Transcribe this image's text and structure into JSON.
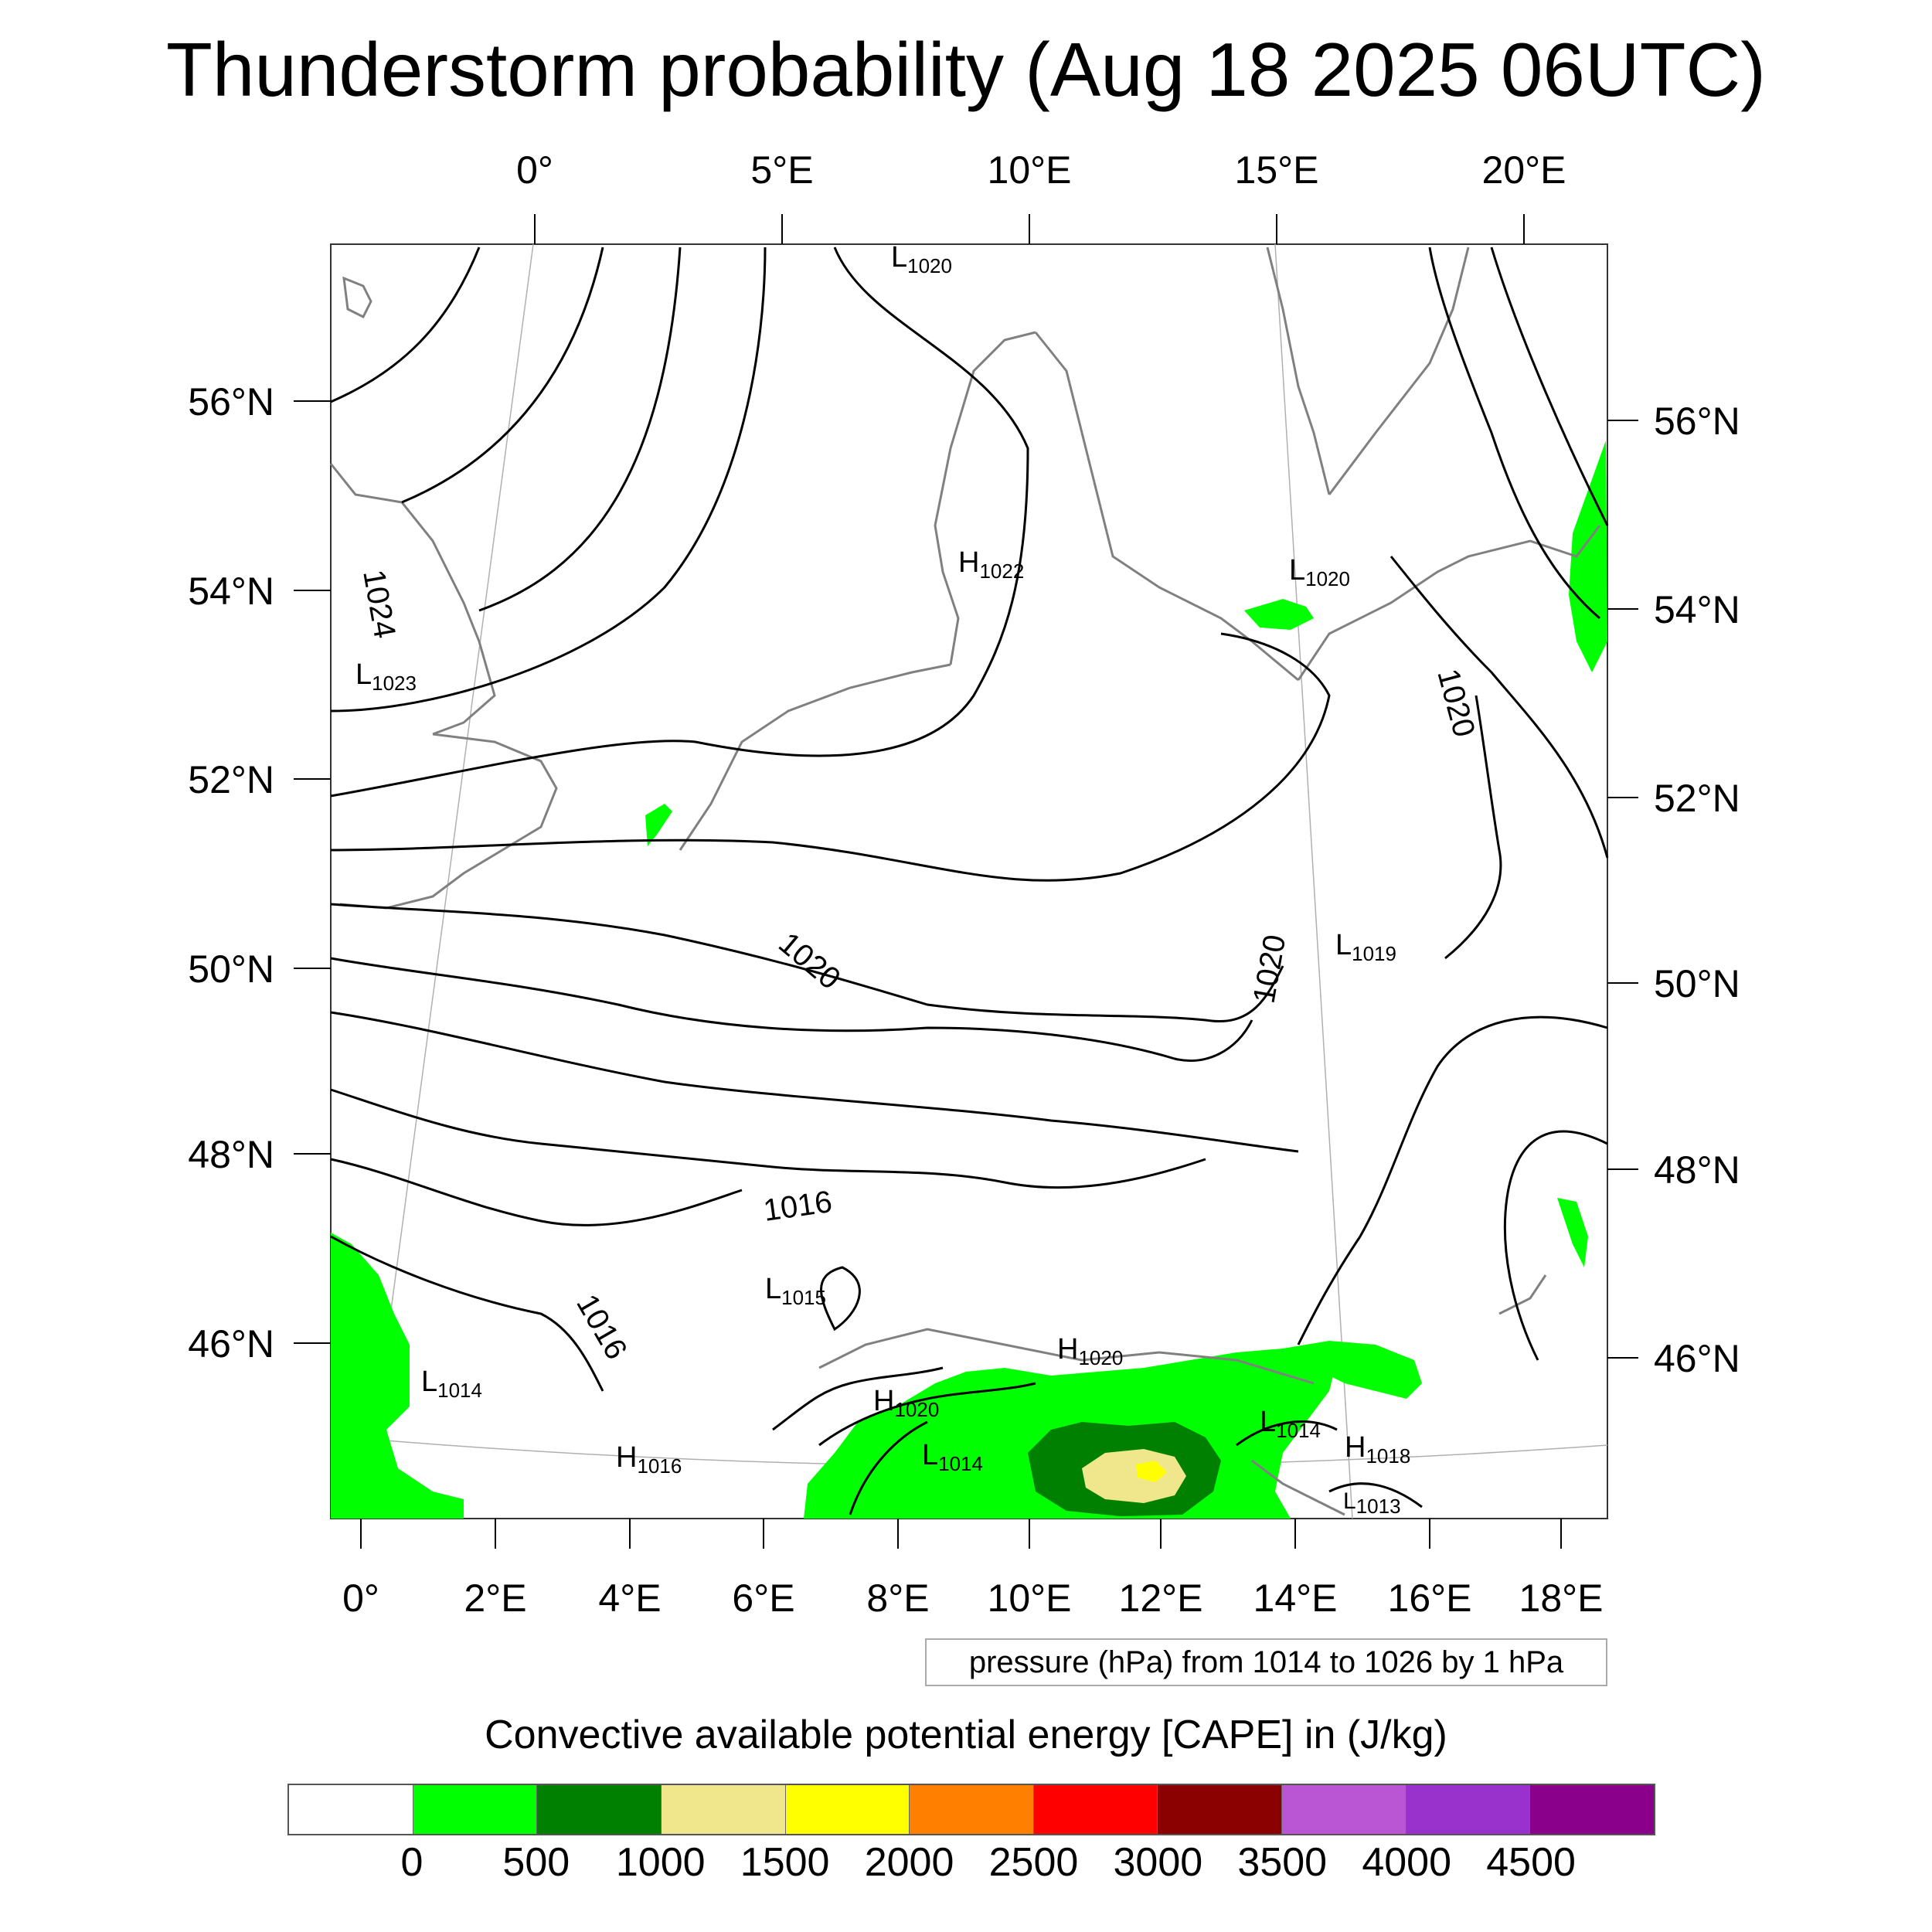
{
  "title": "Thunderstorm probability (Aug 18 2025 06UTC)",
  "top_lon_labels": [
    "0°",
    "5°E",
    "10°E",
    "15°E",
    "20°E"
  ],
  "bottom_lon_labels": [
    "0°",
    "2°E",
    "4°E",
    "6°E",
    "8°E",
    "10°E",
    "12°E",
    "14°E",
    "16°E",
    "18°E"
  ],
  "left_lat_labels": [
    "56°N",
    "54°N",
    "52°N",
    "50°N",
    "48°N",
    "46°N"
  ],
  "right_lat_labels": [
    "56°N",
    "54°N",
    "52°N",
    "50°N",
    "48°N",
    "46°N"
  ],
  "pressure_systems": [
    {
      "letter": "L",
      "value": "1020"
    },
    {
      "letter": "H",
      "value": "1022"
    },
    {
      "letter": "L",
      "value": "1020"
    },
    {
      "letter": "L",
      "value": "1023"
    },
    {
      "letter": "L",
      "value": "1019"
    },
    {
      "letter": "L",
      "value": "1015"
    },
    {
      "letter": "H",
      "value": "1020"
    },
    {
      "letter": "L",
      "value": "1014"
    },
    {
      "letter": "H",
      "value": "1020"
    },
    {
      "letter": "L",
      "value": "1014"
    },
    {
      "letter": "H",
      "value": "1016"
    },
    {
      "letter": "L",
      "value": "1014"
    },
    {
      "letter": "H",
      "value": "1018"
    },
    {
      "letter": "L",
      "value": "1013"
    }
  ],
  "contour_labels": [
    "1024",
    "1020",
    "1020",
    "1020",
    "1016",
    "1016"
  ],
  "pressure_note": "pressure (hPa) from 1014 to 1026 by 1 hPa",
  "colorbar": {
    "title": "Convective available potential energy [CAPE] in (J/kg)",
    "colors": [
      "#ffffff",
      "#00ff00",
      "#008000",
      "#f0e68c",
      "#ffff00",
      "#ff8000",
      "#ff0000",
      "#8b0000",
      "#ba55d3",
      "#9932cc",
      "#8b008b"
    ],
    "labels": [
      "0",
      "500",
      "1000",
      "1500",
      "2000",
      "2500",
      "3000",
      "3500",
      "4000",
      "4500"
    ]
  }
}
